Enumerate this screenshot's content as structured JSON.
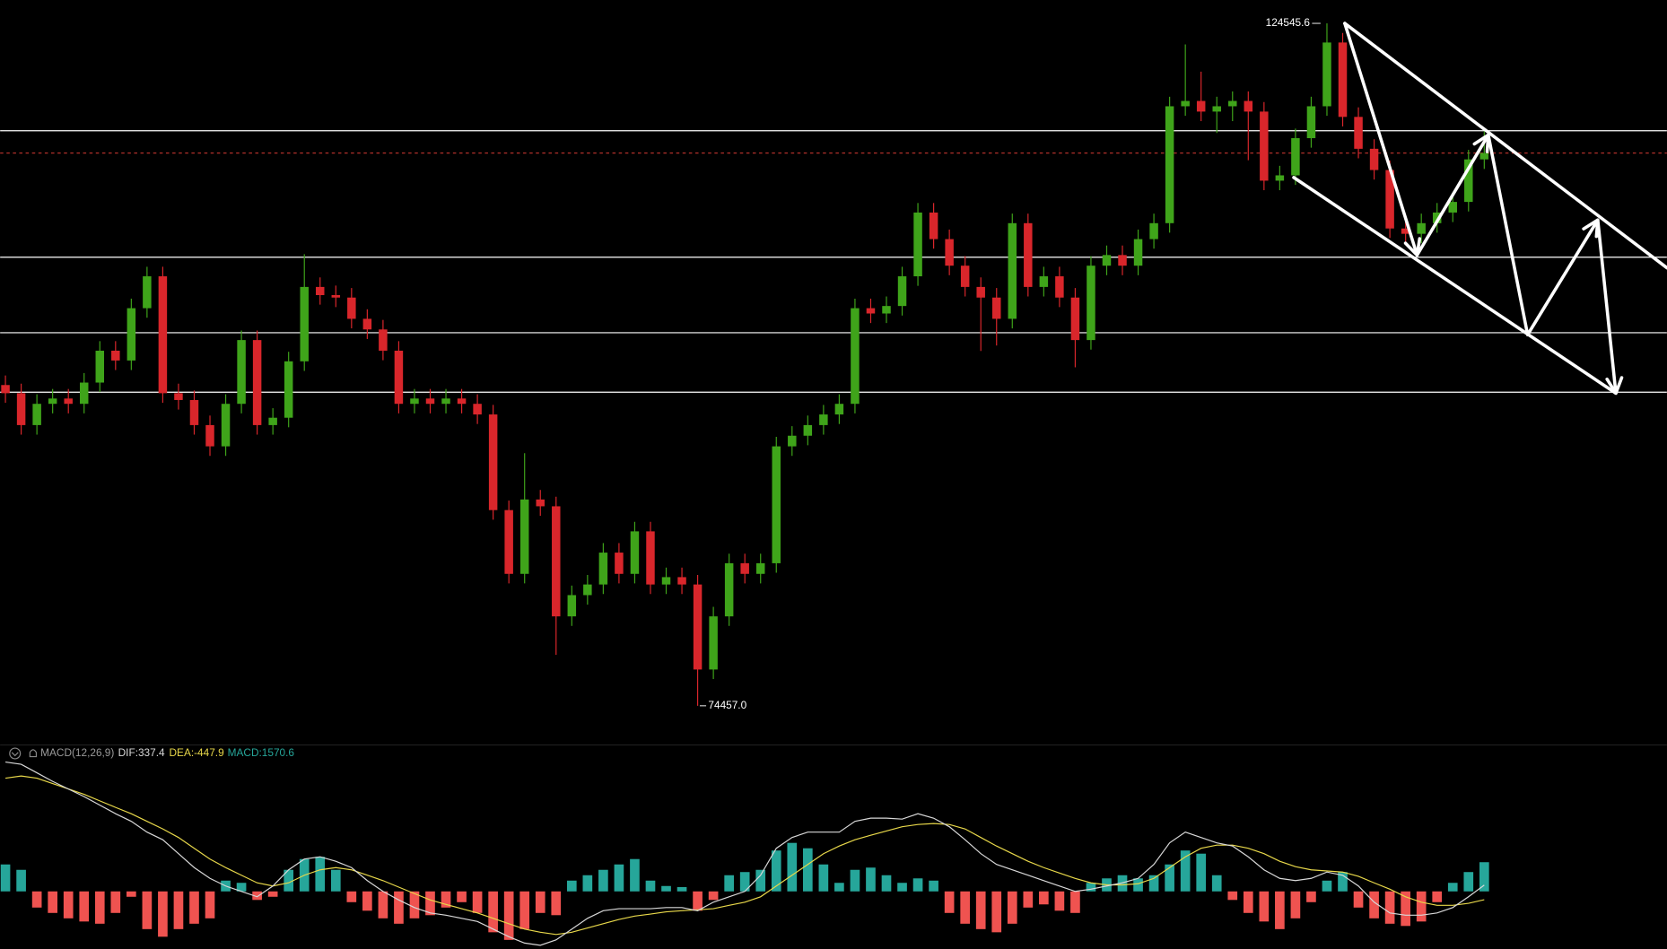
{
  "chart_data": [
    {
      "type": "candlestick",
      "up_color": "#3fa41a",
      "down_color": "#d9262b",
      "ylim": [
        71660,
        126260
      ],
      "levels": [
        116665,
        107381,
        101841,
        97472
      ],
      "level_color": "#ffffff",
      "last_price": 115027,
      "last_price_color": "#b0302b",
      "high_label": "124545.6",
      "low_label": "74457.0",
      "candles": [
        [
          98000,
          98700,
          96700,
          97400
        ],
        [
          97400,
          98100,
          94360,
          95060
        ],
        [
          95060,
          97320,
          94360,
          96620
        ],
        [
          96620,
          97710,
          95920,
          97010
        ],
        [
          97010,
          97710,
          95920,
          96620
        ],
        [
          96620,
          98880,
          95920,
          98180
        ],
        [
          98180,
          101220,
          97480,
          100520
        ],
        [
          100520,
          101220,
          99100,
          99800
        ],
        [
          99800,
          104340,
          99100,
          103640
        ],
        [
          103640,
          106680,
          102940,
          105980
        ],
        [
          105980,
          106680,
          96700,
          97400
        ],
        [
          97400,
          98100,
          96200,
          96900
        ],
        [
          96900,
          97600,
          94360,
          95060
        ],
        [
          95060,
          95760,
          92800,
          93500
        ],
        [
          93500,
          97320,
          92800,
          96620
        ],
        [
          96620,
          102000,
          95920,
          101300
        ],
        [
          101300,
          102000,
          94360,
          95060
        ],
        [
          95060,
          96300,
          94360,
          95600
        ],
        [
          95600,
          100440,
          94900,
          99740
        ],
        [
          99740,
          107600,
          99040,
          105200
        ],
        [
          105200,
          105900,
          103900,
          104600
        ],
        [
          104600,
          105300,
          103720,
          104420
        ],
        [
          104420,
          105120,
          102160,
          102860
        ],
        [
          102860,
          103560,
          101380,
          102080
        ],
        [
          102080,
          102780,
          99820,
          100520
        ],
        [
          100520,
          101220,
          95920,
          96620
        ],
        [
          96620,
          97710,
          95920,
          97010
        ],
        [
          97010,
          97710,
          95920,
          96620
        ],
        [
          96620,
          97710,
          95920,
          97010
        ],
        [
          97010,
          97710,
          95920,
          96620
        ],
        [
          96620,
          97320,
          95140,
          95840
        ],
        [
          95840,
          96540,
          88120,
          88820
        ],
        [
          88820,
          89520,
          83440,
          84140
        ],
        [
          84140,
          93000,
          83440,
          89600
        ],
        [
          89600,
          90300,
          88400,
          89100
        ],
        [
          89100,
          89800,
          78200,
          81020
        ],
        [
          81020,
          83280,
          80320,
          82580
        ],
        [
          82580,
          84060,
          81880,
          83360
        ],
        [
          83360,
          86400,
          82660,
          85700
        ],
        [
          85700,
          86400,
          83440,
          84140
        ],
        [
          84140,
          87960,
          83440,
          87260
        ],
        [
          87260,
          87960,
          82660,
          83360
        ],
        [
          83360,
          84600,
          82660,
          83900
        ],
        [
          83900,
          84600,
          82660,
          83360
        ],
        [
          83360,
          84060,
          74457.0,
          77120
        ],
        [
          77120,
          81720,
          76420,
          81020
        ],
        [
          81020,
          85620,
          80320,
          84920
        ],
        [
          84920,
          85620,
          83440,
          84140
        ],
        [
          84140,
          85620,
          83440,
          84920
        ],
        [
          84920,
          94200,
          84220,
          93500
        ],
        [
          93500,
          94980,
          92800,
          94280
        ],
        [
          94280,
          95760,
          93580,
          95060
        ],
        [
          95060,
          96540,
          94360,
          95840
        ],
        [
          95840,
          97320,
          95140,
          96620
        ],
        [
          96620,
          104340,
          95920,
          103640
        ],
        [
          103640,
          104340,
          102550,
          103250
        ],
        [
          103250,
          104500,
          102550,
          103800
        ],
        [
          103800,
          106680,
          103100,
          105980
        ],
        [
          105980,
          111360,
          105280,
          110660
        ],
        [
          110660,
          111360,
          108010,
          108710
        ],
        [
          108710,
          109410,
          106060,
          106760
        ],
        [
          106760,
          107460,
          104500,
          105200
        ],
        [
          105200,
          105900,
          100500,
          104420
        ],
        [
          104420,
          105120,
          100900,
          102860
        ],
        [
          102860,
          110580,
          102160,
          109880
        ],
        [
          109880,
          110580,
          104500,
          105200
        ],
        [
          105200,
          106680,
          104500,
          105980
        ],
        [
          105980,
          106680,
          103720,
          104420
        ],
        [
          104420,
          105120,
          99300,
          101300
        ],
        [
          101300,
          107460,
          100600,
          106760
        ],
        [
          106760,
          108240,
          106060,
          107540
        ],
        [
          107540,
          108240,
          106060,
          106760
        ],
        [
          106760,
          109410,
          106060,
          108710
        ],
        [
          108710,
          110580,
          108010,
          109880
        ],
        [
          109880,
          119160,
          109180,
          118460
        ],
        [
          118460,
          123000,
          117760,
          118850
        ],
        [
          118850,
          121000,
          117370,
          118070
        ],
        [
          118070,
          119160,
          116500,
          118460
        ],
        [
          118460,
          119550,
          117370,
          118850
        ],
        [
          118850,
          119550,
          114500,
          118070
        ],
        [
          118070,
          118770,
          112300,
          113000
        ],
        [
          113000,
          114090,
          112300,
          113390
        ],
        [
          113390,
          116820,
          112690,
          116120
        ],
        [
          116120,
          119160,
          115420,
          118460
        ],
        [
          118460,
          124545.6,
          117760,
          123140
        ],
        [
          123140,
          123840,
          116980,
          117680
        ],
        [
          117680,
          118380,
          114640,
          115340
        ],
        [
          115340,
          116040,
          113080,
          113780
        ],
        [
          113780,
          114480,
          108790,
          109490
        ],
        [
          109490,
          110190,
          108400,
          109100
        ],
        [
          109100,
          110580,
          108400,
          109880
        ],
        [
          109880,
          111360,
          109180,
          110660
        ],
        [
          110660,
          112140,
          109960,
          111440
        ],
        [
          111440,
          115260,
          110740,
          114560
        ],
        [
          114560,
          116820,
          113860,
          115030
        ]
      ]
    },
    {
      "type": "macd",
      "title": "MACD(12,26,9)",
      "ylim": [
        -3100,
        7250
      ],
      "dif": {
        "label": "DIF:337.4",
        "color": "#d8d8d8",
        "values": [
          6960,
          6840,
          6380,
          5920,
          5510,
          5100,
          4640,
          4180,
          3770,
          3190,
          2780,
          2030,
          1280,
          700,
          290,
          0,
          -290,
          290,
          1160,
          1740,
          1860,
          1620,
          1280,
          580,
          0,
          -460,
          -870,
          -1160,
          -1280,
          -1450,
          -1620,
          -2030,
          -2440,
          -2780,
          -2900,
          -2610,
          -2030,
          -1450,
          -1040,
          -930,
          -930,
          -930,
          -870,
          -870,
          -1040,
          -580,
          -290,
          0,
          870,
          2320,
          2900,
          3190,
          3190,
          3190,
          3770,
          3940,
          3940,
          3890,
          4180,
          3940,
          3480,
          2780,
          2030,
          1450,
          1160,
          870,
          580,
          290,
          0,
          120,
          290,
          460,
          700,
          1450,
          2610,
          3190,
          2900,
          2610,
          2440,
          1860,
          1160,
          700,
          580,
          700,
          1040,
          870,
          290,
          -580,
          -1160,
          -1280,
          -1280,
          -1160,
          -870,
          -290,
          337.4
        ]
      },
      "dea": {
        "label": "DEA:-447.9",
        "color": "#e8d84a",
        "values": [
          6090,
          6210,
          6090,
          5800,
          5510,
          5220,
          4870,
          4520,
          4180,
          3770,
          3360,
          2900,
          2320,
          1740,
          1280,
          870,
          460,
          290,
          460,
          870,
          1160,
          1280,
          1160,
          870,
          580,
          230,
          -120,
          -460,
          -700,
          -930,
          -1160,
          -1450,
          -1740,
          -2030,
          -2200,
          -2320,
          -2200,
          -1970,
          -1740,
          -1510,
          -1330,
          -1220,
          -1100,
          -1040,
          -990,
          -930,
          -750,
          -580,
          -290,
          290,
          870,
          1450,
          2030,
          2440,
          2780,
          3020,
          3250,
          3480,
          3600,
          3650,
          3600,
          3360,
          2900,
          2440,
          2030,
          1620,
          1280,
          990,
          700,
          460,
          350,
          350,
          410,
          700,
          1280,
          1860,
          2320,
          2490,
          2490,
          2320,
          2030,
          1620,
          1330,
          1160,
          1100,
          1040,
          810,
          460,
          120,
          -290,
          -580,
          -750,
          -750,
          -640,
          -447.9
        ]
      },
      "hist": {
        "label": "MACD:1570.6",
        "up_color": "#26a69a",
        "down_color": "#ef5350",
        "values": [
          1450,
          1160,
          -870,
          -1160,
          -1450,
          -1620,
          -1740,
          -1160,
          -290,
          -2030,
          -2440,
          -2030,
          -1740,
          -1450,
          580,
          460,
          -460,
          -290,
          1160,
          1740,
          1860,
          1160,
          -580,
          -1040,
          -1450,
          -1740,
          -1450,
          -1280,
          -870,
          -580,
          -1160,
          -2200,
          -2610,
          -2030,
          -1160,
          -1280,
          580,
          870,
          1160,
          1450,
          1740,
          580,
          290,
          230,
          -1040,
          -460,
          870,
          1040,
          1160,
          2200,
          2610,
          2320,
          1450,
          460,
          1160,
          1280,
          870,
          460,
          700,
          580,
          -1160,
          -1740,
          -2030,
          -2200,
          -1740,
          -870,
          -700,
          -1040,
          -1160,
          460,
          700,
          870,
          700,
          870,
          1450,
          2200,
          2030,
          870,
          -460,
          -1160,
          -1620,
          -2030,
          -1450,
          -580,
          580,
          1040,
          -870,
          -1450,
          -1740,
          -1860,
          -1620,
          -580,
          460,
          1040,
          1570.6
        ]
      }
    }
  ]
}
